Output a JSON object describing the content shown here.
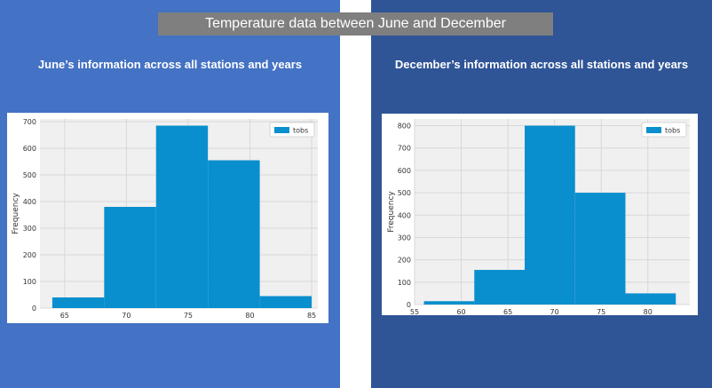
{
  "header": {
    "title": "Temperature data between June and December"
  },
  "panels": [
    {
      "subtitle": "June’s information across all stations and years"
    },
    {
      "subtitle": "December’s information across all stations and years"
    }
  ],
  "colors": {
    "bar": "#0a8fce",
    "plot_bg": "#f0f0f0",
    "grid": "#d8d8d8",
    "left_panel": "#4472c4",
    "right_panel": "#2f5597",
    "title_bg": "#7f7f7f"
  },
  "chart_data": [
    {
      "type": "bar",
      "histogram": true,
      "bin_edges": [
        64.0,
        68.2,
        72.4,
        76.6,
        80.8,
        85.0
      ],
      "values": [
        40,
        380,
        685,
        555,
        45
      ],
      "ylabel": "Frequency",
      "xlim": [
        63,
        85.5
      ],
      "ylim": [
        0,
        710
      ],
      "xticks": [
        65,
        70,
        75,
        80,
        85
      ],
      "yticks": [
        0,
        100,
        200,
        300,
        400,
        500,
        600,
        700
      ],
      "legend": "tobs",
      "legend_position": "top-right",
      "grid": true
    },
    {
      "type": "bar",
      "histogram": true,
      "bin_edges": [
        56.0,
        61.4,
        66.8,
        72.2,
        77.6,
        83.0
      ],
      "values": [
        15,
        155,
        800,
        500,
        50
      ],
      "ylabel": "Frequency",
      "xlim": [
        55,
        84.5
      ],
      "ylim": [
        0,
        830
      ],
      "xticks": [
        55,
        60,
        65,
        70,
        75,
        80
      ],
      "yticks": [
        0,
        100,
        200,
        300,
        400,
        500,
        600,
        700,
        800
      ],
      "legend": "tobs",
      "legend_position": "top-right",
      "grid": true
    }
  ]
}
